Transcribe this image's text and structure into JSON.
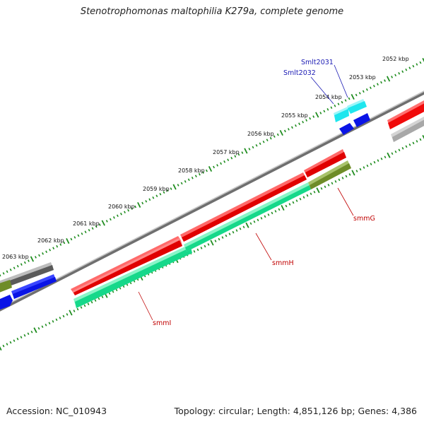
{
  "title": "Stenotrophomonas maltophilia K279a, complete genome",
  "footer": {
    "accession": "Accession: NC_010943",
    "summary": "Topology: circular; Length: 4,851,126 bp; Genes: 4,386"
  },
  "colors": {
    "backbone": "#8c8c8c",
    "tick": "#1e8c1e",
    "gene_red": "#f00a0a",
    "gene_green": "#22e89a",
    "gene_olive": "#6e8c28",
    "gene_blue": "#0a14e6",
    "gene_cyan": "#1ee6ee",
    "gene_gray": "#5a5a5a",
    "gene_lightgray": "#bdbdbd",
    "label_red": "#c00000",
    "label_blue": "#1a1ab4"
  },
  "scale_labels": [
    {
      "key": "2052",
      "text": "2052 kbp"
    },
    {
      "key": "2053",
      "text": "2053 kbp"
    },
    {
      "key": "2054",
      "text": "2054 kbp"
    },
    {
      "key": "2055",
      "text": "2055 kbp"
    },
    {
      "key": "2056",
      "text": "2056 kbp"
    },
    {
      "key": "2057",
      "text": "2057 kbp"
    },
    {
      "key": "2058",
      "text": "2058 kbp"
    },
    {
      "key": "2059",
      "text": "2059 kbp"
    },
    {
      "key": "2060",
      "text": "2060 kbp"
    },
    {
      "key": "2061",
      "text": "2061 kbp"
    },
    {
      "key": "2062",
      "text": "2062 kbp"
    },
    {
      "key": "2063",
      "text": "2063 kbp"
    }
  ],
  "gene_labels": [
    {
      "key": "smlt2031",
      "text": "Smlt2031",
      "color": "blue"
    },
    {
      "key": "smlt2032",
      "text": "Smlt2032",
      "color": "blue"
    },
    {
      "key": "smmg",
      "text": "smmG",
      "color": "red"
    },
    {
      "key": "smmh",
      "text": "smmH",
      "color": "red"
    },
    {
      "key": "smmi",
      "text": "smmI",
      "color": "red"
    }
  ]
}
